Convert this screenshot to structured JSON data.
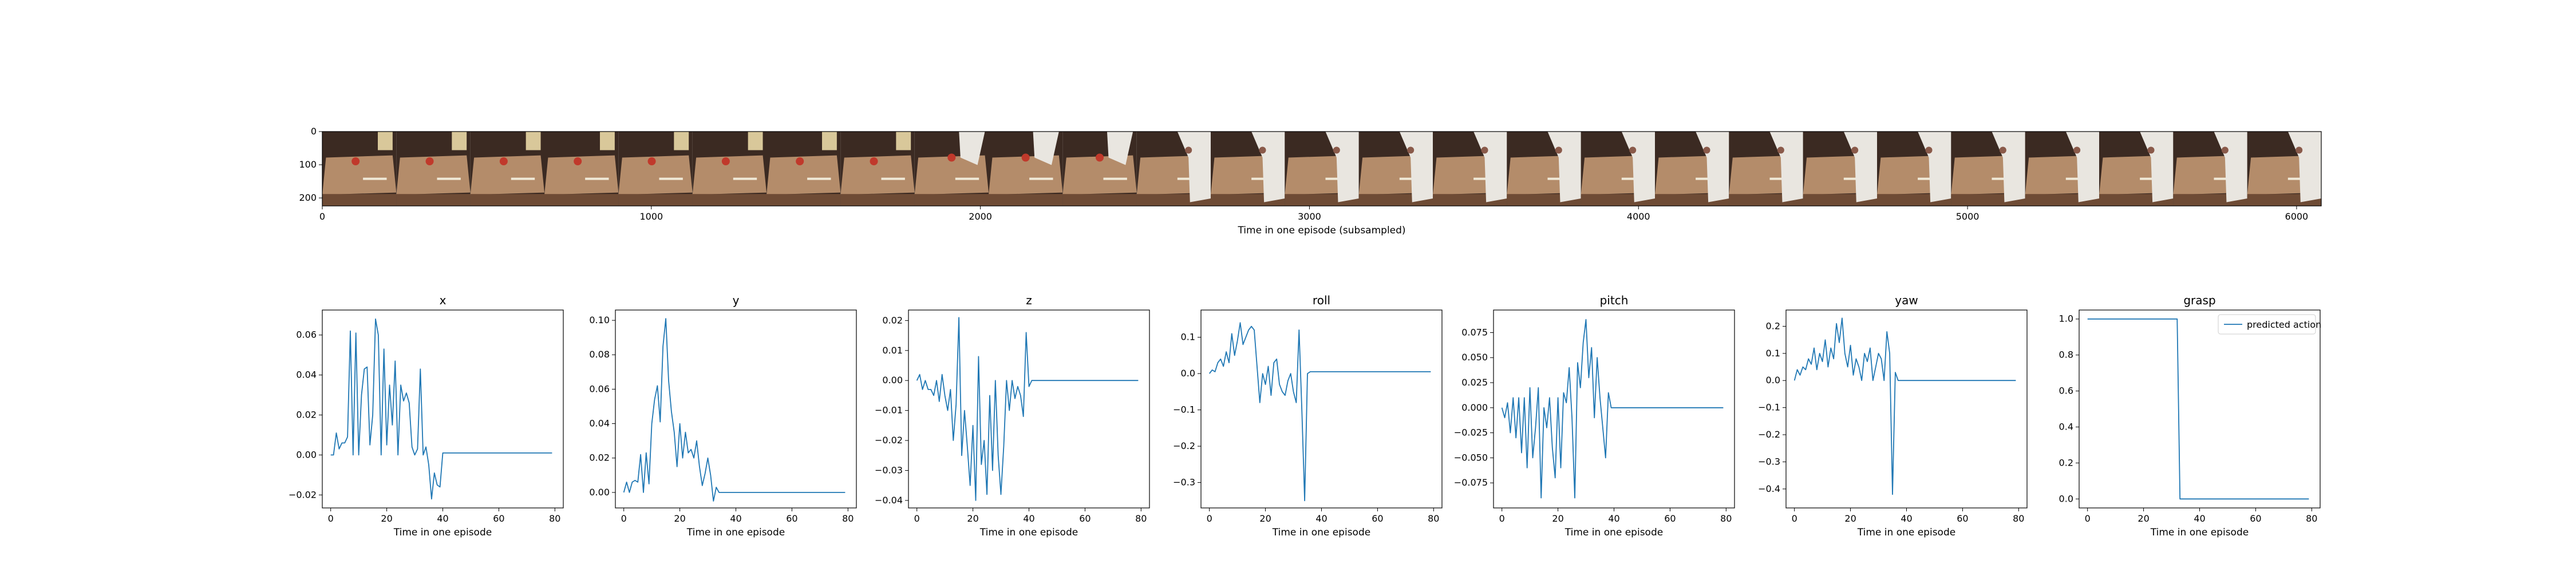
{
  "film_strip": {
    "description_label": "Time in one episode (subsampled)",
    "x_ticks": [
      "0",
      "1000",
      "2000",
      "3000",
      "4000",
      "5000",
      "6000"
    ],
    "y_ticks": [
      "0",
      "100",
      "200"
    ],
    "frames": 27,
    "xlim": [
      0,
      6075
    ],
    "ylim": [
      0,
      224
    ]
  },
  "colors": {
    "line": "#1f77b4",
    "wall_dark": "#3b2a22",
    "table": "#b48c6a",
    "table_dark": "#6e4b35",
    "robot": "#e9e6e0",
    "object": "#c0392b"
  },
  "chart_data": [
    {
      "type": "line",
      "title": "x",
      "xlabel": "Time in one episode",
      "ylabel": "",
      "xlim": [
        -3,
        83
      ],
      "ylim": [
        -0.0265,
        0.0725
      ],
      "x_ticks": [
        "0",
        "20",
        "40",
        "60",
        "80"
      ],
      "y_ticks": [
        {
          "v": -0.02,
          "t": "−0.02"
        },
        {
          "v": 0.0,
          "t": "0.00"
        },
        {
          "v": 0.02,
          "t": "0.02"
        },
        {
          "v": 0.04,
          "t": "0.04"
        },
        {
          "v": 0.06,
          "t": "0.06"
        }
      ],
      "series": [
        {
          "name": "predicted action",
          "y": [
            0.0,
            0.0,
            0.011,
            0.003,
            0.006,
            0.006,
            0.009,
            0.062,
            0.0,
            0.061,
            0.0,
            0.03,
            0.043,
            0.044,
            0.005,
            0.02,
            0.068,
            0.06,
            0.0,
            0.053,
            0.005,
            0.035,
            0.015,
            0.047,
            0.0,
            0.035,
            0.027,
            0.031,
            0.026,
            0.004,
            0.0,
            0.003,
            0.043,
            0.0,
            0.004,
            -0.005,
            -0.022,
            -0.009,
            -0.015,
            -0.016,
            0.001,
            0.001,
            0.001,
            0.001,
            0.001,
            0.001,
            0.001,
            0.001,
            0.001,
            0.001,
            0.001,
            0.001,
            0.001,
            0.001,
            0.001,
            0.001,
            0.001,
            0.001,
            0.001,
            0.001,
            0.001,
            0.001,
            0.001,
            0.001,
            0.001,
            0.001,
            0.001,
            0.001,
            0.001,
            0.001,
            0.001,
            0.001,
            0.001,
            0.001,
            0.001,
            0.001,
            0.001,
            0.001,
            0.001,
            0.001
          ]
        }
      ]
    },
    {
      "type": "line",
      "title": "y",
      "xlabel": "Time in one episode",
      "ylabel": "",
      "xlim": [
        -3,
        83
      ],
      "ylim": [
        -0.009,
        0.106
      ],
      "x_ticks": [
        "0",
        "20",
        "40",
        "60",
        "80"
      ],
      "y_ticks": [
        {
          "v": 0.0,
          "t": "0.00"
        },
        {
          "v": 0.02,
          "t": "0.02"
        },
        {
          "v": 0.04,
          "t": "0.04"
        },
        {
          "v": 0.06,
          "t": "0.06"
        },
        {
          "v": 0.08,
          "t": "0.08"
        },
        {
          "v": 0.1,
          "t": "0.10"
        }
      ],
      "series": [
        {
          "name": "predicted action",
          "y": [
            0.0,
            0.006,
            0.0,
            0.006,
            0.007,
            0.006,
            0.022,
            0.0,
            0.023,
            0.005,
            0.04,
            0.054,
            0.062,
            0.041,
            0.085,
            0.101,
            0.065,
            0.047,
            0.035,
            0.015,
            0.04,
            0.02,
            0.035,
            0.023,
            0.025,
            0.02,
            0.03,
            0.015,
            0.004,
            0.011,
            0.02,
            0.01,
            -0.005,
            0.003,
            0.0,
            0.0,
            0.0,
            0.0,
            0.0,
            0.0,
            0.0,
            0.0,
            0.0,
            0.0,
            0.0,
            0.0,
            0.0,
            0.0,
            0.0,
            0.0,
            0.0,
            0.0,
            0.0,
            0.0,
            0.0,
            0.0,
            0.0,
            0.0,
            0.0,
            0.0,
            0.0,
            0.0,
            0.0,
            0.0,
            0.0,
            0.0,
            0.0,
            0.0,
            0.0,
            0.0,
            0.0,
            0.0,
            0.0,
            0.0,
            0.0,
            0.0,
            0.0,
            0.0,
            0.0,
            0.0
          ]
        }
      ]
    },
    {
      "type": "line",
      "title": "z",
      "xlabel": "Time in one episode",
      "ylabel": "",
      "xlim": [
        -3,
        83
      ],
      "ylim": [
        -0.0425,
        0.0235
      ],
      "x_ticks": [
        "0",
        "20",
        "40",
        "60",
        "80"
      ],
      "y_ticks": [
        {
          "v": -0.04,
          "t": "−0.04"
        },
        {
          "v": -0.03,
          "t": "−0.03"
        },
        {
          "v": -0.02,
          "t": "−0.02"
        },
        {
          "v": -0.01,
          "t": "−0.01"
        },
        {
          "v": 0.0,
          "t": "0.00"
        },
        {
          "v": 0.01,
          "t": "0.01"
        },
        {
          "v": 0.02,
          "t": "0.02"
        }
      ],
      "series": [
        {
          "name": "predicted action",
          "y": [
            0.0,
            0.002,
            -0.003,
            0.0,
            -0.003,
            -0.003,
            -0.005,
            0.0,
            -0.007,
            0.002,
            -0.005,
            -0.01,
            -0.003,
            -0.02,
            -0.008,
            0.021,
            -0.025,
            -0.01,
            -0.022,
            -0.035,
            -0.015,
            -0.04,
            0.008,
            -0.028,
            -0.02,
            -0.038,
            -0.005,
            -0.03,
            0.0,
            -0.025,
            -0.038,
            -0.022,
            0.0,
            -0.01,
            0.0,
            -0.006,
            -0.002,
            -0.005,
            -0.012,
            0.016,
            -0.002,
            0.0,
            0.0,
            0.0,
            0.0,
            0.0,
            0.0,
            0.0,
            0.0,
            0.0,
            0.0,
            0.0,
            0.0,
            0.0,
            0.0,
            0.0,
            0.0,
            0.0,
            0.0,
            0.0,
            0.0,
            0.0,
            0.0,
            0.0,
            0.0,
            0.0,
            0.0,
            0.0,
            0.0,
            0.0,
            0.0,
            0.0,
            0.0,
            0.0,
            0.0,
            0.0,
            0.0,
            0.0,
            0.0,
            0.0
          ]
        }
      ]
    },
    {
      "type": "line",
      "title": "roll",
      "xlabel": "Time in one episode",
      "ylabel": "",
      "xlim": [
        -3,
        83
      ],
      "ylim": [
        -0.37,
        0.175
      ],
      "x_ticks": [
        "0",
        "20",
        "40",
        "60",
        "80"
      ],
      "y_ticks": [
        {
          "v": -0.3,
          "t": "−0.3"
        },
        {
          "v": -0.2,
          "t": "−0.2"
        },
        {
          "v": -0.1,
          "t": "−0.1"
        },
        {
          "v": 0.0,
          "t": "0.0"
        },
        {
          "v": 0.1,
          "t": "0.1"
        }
      ],
      "series": [
        {
          "name": "predicted action",
          "y": [
            0.0,
            0.01,
            0.005,
            0.03,
            0.04,
            0.02,
            0.06,
            0.03,
            0.11,
            0.05,
            0.09,
            0.14,
            0.08,
            0.1,
            0.12,
            0.13,
            0.12,
            0.02,
            -0.08,
            0.0,
            -0.03,
            0.02,
            -0.06,
            0.03,
            0.04,
            -0.03,
            -0.05,
            -0.06,
            -0.02,
            0.0,
            -0.05,
            -0.08,
            0.12,
            -0.1,
            -0.35,
            0.0,
            0.005,
            0.005,
            0.005,
            0.005,
            0.005,
            0.005,
            0.005,
            0.005,
            0.005,
            0.005,
            0.005,
            0.005,
            0.005,
            0.005,
            0.005,
            0.005,
            0.005,
            0.005,
            0.005,
            0.005,
            0.005,
            0.005,
            0.005,
            0.005,
            0.005,
            0.005,
            0.005,
            0.005,
            0.005,
            0.005,
            0.005,
            0.005,
            0.005,
            0.005,
            0.005,
            0.005,
            0.005,
            0.005,
            0.005,
            0.005,
            0.005,
            0.005,
            0.005,
            0.005
          ]
        }
      ]
    },
    {
      "type": "line",
      "title": "pitch",
      "xlabel": "Time in one episode",
      "ylabel": "",
      "xlim": [
        -3,
        83
      ],
      "ylim": [
        -0.1,
        0.0975
      ],
      "x_ticks": [
        "0",
        "20",
        "40",
        "60",
        "80"
      ],
      "y_ticks": [
        {
          "v": -0.075,
          "t": "−0.075"
        },
        {
          "v": -0.05,
          "t": "−0.050"
        },
        {
          "v": -0.025,
          "t": "−0.025"
        },
        {
          "v": 0.0,
          "t": "0.000"
        },
        {
          "v": 0.025,
          "t": "0.025"
        },
        {
          "v": 0.05,
          "t": "0.050"
        },
        {
          "v": 0.075,
          "t": "0.075"
        }
      ],
      "series": [
        {
          "name": "predicted action",
          "y": [
            0.0,
            -0.01,
            0.005,
            -0.025,
            0.01,
            -0.03,
            0.01,
            -0.045,
            0.01,
            -0.06,
            0.02,
            -0.05,
            -0.02,
            0.02,
            -0.09,
            0.0,
            -0.02,
            0.01,
            -0.04,
            -0.07,
            0.01,
            -0.06,
            0.015,
            0.005,
            0.04,
            -0.01,
            -0.09,
            0.045,
            0.02,
            0.065,
            0.088,
            0.03,
            0.06,
            -0.01,
            0.05,
            0.01,
            -0.02,
            -0.05,
            0.015,
            0.0,
            0.0,
            0.0,
            0.0,
            0.0,
            0.0,
            0.0,
            0.0,
            0.0,
            0.0,
            0.0,
            0.0,
            0.0,
            0.0,
            0.0,
            0.0,
            0.0,
            0.0,
            0.0,
            0.0,
            0.0,
            0.0,
            0.0,
            0.0,
            0.0,
            0.0,
            0.0,
            0.0,
            0.0,
            0.0,
            0.0,
            0.0,
            0.0,
            0.0,
            0.0,
            0.0,
            0.0,
            0.0,
            0.0,
            0.0,
            0.0
          ]
        }
      ]
    },
    {
      "type": "line",
      "title": "yaw",
      "xlabel": "Time in one episode",
      "ylabel": "",
      "xlim": [
        -3,
        83
      ],
      "ylim": [
        -0.47,
        0.26
      ],
      "x_ticks": [
        "0",
        "20",
        "40",
        "60",
        "80"
      ],
      "y_ticks": [
        {
          "v": -0.4,
          "t": "−0.4"
        },
        {
          "v": -0.3,
          "t": "−0.3"
        },
        {
          "v": -0.2,
          "t": "−0.2"
        },
        {
          "v": -0.1,
          "t": "−0.1"
        },
        {
          "v": 0.0,
          "t": "0.0"
        },
        {
          "v": 0.1,
          "t": "0.1"
        },
        {
          "v": 0.2,
          "t": "0.2"
        }
      ],
      "series": [
        {
          "name": "predicted action",
          "y": [
            0.0,
            0.04,
            0.02,
            0.05,
            0.04,
            0.08,
            0.06,
            0.12,
            0.04,
            0.1,
            0.07,
            0.15,
            0.05,
            0.12,
            0.08,
            0.21,
            0.14,
            0.23,
            0.1,
            0.05,
            0.13,
            0.02,
            0.08,
            0.05,
            0.0,
            0.1,
            0.07,
            0.12,
            0.0,
            0.05,
            0.1,
            0.08,
            0.0,
            0.18,
            0.1,
            -0.42,
            0.03,
            0.0,
            0.0,
            0.0,
            0.0,
            0.0,
            0.0,
            0.0,
            0.0,
            0.0,
            0.0,
            0.0,
            0.0,
            0.0,
            0.0,
            0.0,
            0.0,
            0.0,
            0.0,
            0.0,
            0.0,
            0.0,
            0.0,
            0.0,
            0.0,
            0.0,
            0.0,
            0.0,
            0.0,
            0.0,
            0.0,
            0.0,
            0.0,
            0.0,
            0.0,
            0.0,
            0.0,
            0.0,
            0.0,
            0.0,
            0.0,
            0.0,
            0.0,
            0.0
          ]
        }
      ]
    },
    {
      "type": "line",
      "title": "grasp",
      "xlabel": "Time in one episode",
      "ylabel": "",
      "xlim": [
        -3,
        83
      ],
      "ylim": [
        -0.05,
        1.05
      ],
      "x_ticks": [
        "0",
        "20",
        "40",
        "60",
        "80"
      ],
      "y_ticks": [
        {
          "v": 0.0,
          "t": "0.0"
        },
        {
          "v": 0.2,
          "t": "0.2"
        },
        {
          "v": 0.4,
          "t": "0.4"
        },
        {
          "v": 0.6,
          "t": "0.6"
        },
        {
          "v": 0.8,
          "t": "0.8"
        },
        {
          "v": 1.0,
          "t": "1.0"
        }
      ],
      "legend": "predicted action",
      "series": [
        {
          "name": "predicted action",
          "y": [
            1,
            1,
            1,
            1,
            1,
            1,
            1,
            1,
            1,
            1,
            1,
            1,
            1,
            1,
            1,
            1,
            1,
            1,
            1,
            1,
            1,
            1,
            1,
            1,
            1,
            1,
            1,
            1,
            1,
            1,
            1,
            1,
            1,
            0,
            0,
            0,
            0,
            0,
            0,
            0,
            0,
            0,
            0,
            0,
            0,
            0,
            0,
            0,
            0,
            0,
            0,
            0,
            0,
            0,
            0,
            0,
            0,
            0,
            0,
            0,
            0,
            0,
            0,
            0,
            0,
            0,
            0,
            0,
            0,
            0,
            0,
            0,
            0,
            0,
            0,
            0,
            0,
            0,
            0,
            0
          ]
        }
      ]
    }
  ]
}
